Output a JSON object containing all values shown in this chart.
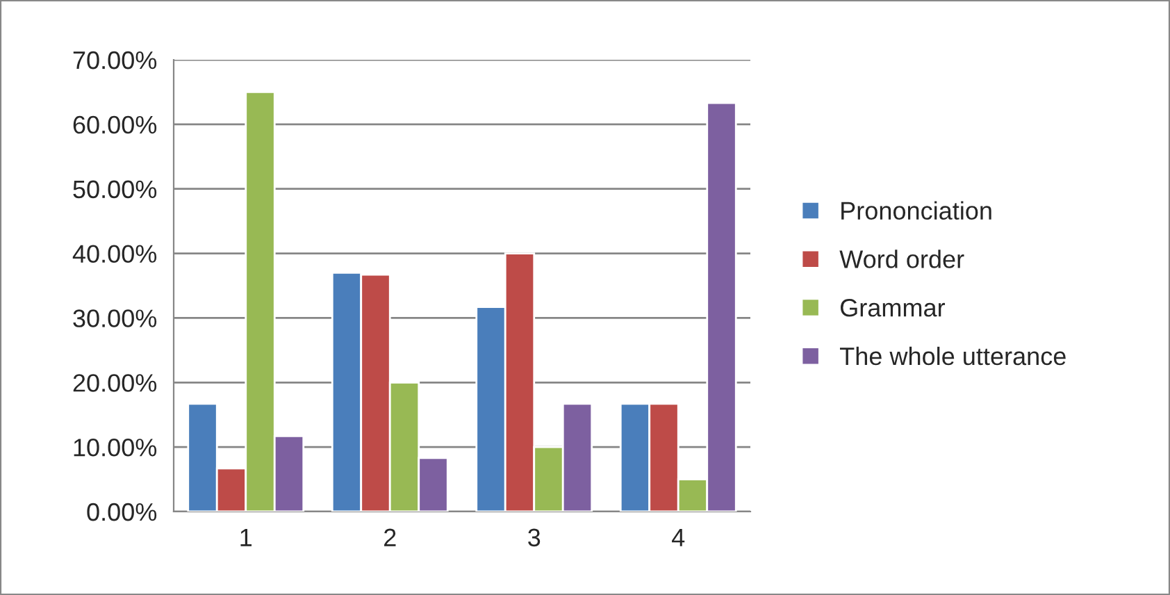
{
  "chart_data": {
    "type": "bar",
    "categories": [
      "1",
      "2",
      "3",
      "4"
    ],
    "series": [
      {
        "name": "Prononciation",
        "color": "#4a7ebb",
        "values": [
          16.7,
          37.0,
          31.7,
          16.7
        ]
      },
      {
        "name": "Word order",
        "color": "#be4b48",
        "values": [
          6.7,
          36.7,
          40.0,
          16.7
        ]
      },
      {
        "name": "Grammar",
        "color": "#98b954",
        "values": [
          65.0,
          20.0,
          10.0,
          5.0
        ]
      },
      {
        "name": "The whole utterance",
        "color": "#7d60a0",
        "values": [
          11.7,
          8.3,
          16.7,
          63.3
        ]
      }
    ],
    "ylim": [
      0,
      70
    ],
    "yticks": [
      {
        "value": 0,
        "label": "0.00%"
      },
      {
        "value": 10,
        "label": "10.00%"
      },
      {
        "value": 20,
        "label": "20.00%"
      },
      {
        "value": 30,
        "label": "30.00%"
      },
      {
        "value": 40,
        "label": "40.00%"
      },
      {
        "value": 50,
        "label": "50.00%"
      },
      {
        "value": 60,
        "label": "60.00%"
      },
      {
        "value": 70,
        "label": "70.00%"
      }
    ],
    "grid": "y",
    "legend": "right"
  }
}
